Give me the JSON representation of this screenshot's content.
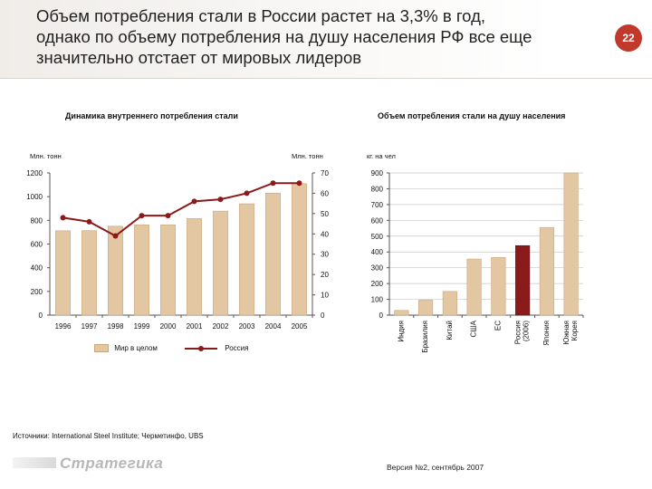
{
  "header": {
    "title_lines": [
      "Объем потребления стали в России растет на 3,3% в год,",
      "однако по объему потребления на душу населения РФ все еще",
      "значительно отстает от мировых лидеров"
    ],
    "page_number": "22",
    "accent_color": "#c0392b"
  },
  "footer": {
    "source": "Источники: International Steel Institute; Черметинфо, UBS",
    "version": "Версия №2, сентябрь 2007",
    "logo_text": "Стратегика"
  },
  "colors": {
    "bar": "#e3c7a2",
    "bar_edge": "#c9a67c",
    "line": "#8b1a1a",
    "highlight_bar": "#8b1a1a"
  },
  "chart_data": [
    {
      "type": "bar",
      "title": "Динамика внутреннего потребления стали",
      "y_left_label": "Млн. тонн",
      "y_right_label": "Млн. тонн",
      "categories": [
        "1996",
        "1997",
        "1998",
        "1999",
        "2000",
        "2001",
        "2002",
        "2003",
        "2004",
        "2005"
      ],
      "ylim_left": [
        0,
        1200
      ],
      "y_left_ticks": [
        0,
        200,
        400,
        600,
        800,
        1000,
        1200
      ],
      "ylim_right": [
        0,
        70
      ],
      "y_right_ticks": [
        0,
        10,
        20,
        30,
        40,
        50,
        60,
        70
      ],
      "series": [
        {
          "name": "Мир в целом",
          "kind": "bar",
          "axis": "left",
          "values": [
            712,
            713,
            750,
            762,
            762,
            815,
            878,
            940,
            1030,
            1110
          ]
        },
        {
          "name": "Россия",
          "kind": "line",
          "axis": "right",
          "values": [
            48,
            46,
            39,
            49,
            49,
            56,
            57,
            60,
            65,
            65
          ]
        }
      ],
      "legend_position": "bottom",
      "grid": false
    },
    {
      "type": "bar",
      "title": "Объем потребления стали на душу населения",
      "ylabel": "кг. на чел",
      "categories": [
        "Индия",
        "Бразилия",
        "Китай",
        "США",
        "ЕС",
        "Россия (2006)",
        "Япония",
        "Южная Корея"
      ],
      "values": [
        30,
        95,
        150,
        355,
        365,
        440,
        555,
        900
      ],
      "highlight": "Россия (2006)",
      "ylim": [
        0,
        900
      ],
      "y_ticks": [
        0,
        100,
        200,
        300,
        400,
        500,
        600,
        700,
        800,
        900
      ],
      "grid": true
    }
  ]
}
